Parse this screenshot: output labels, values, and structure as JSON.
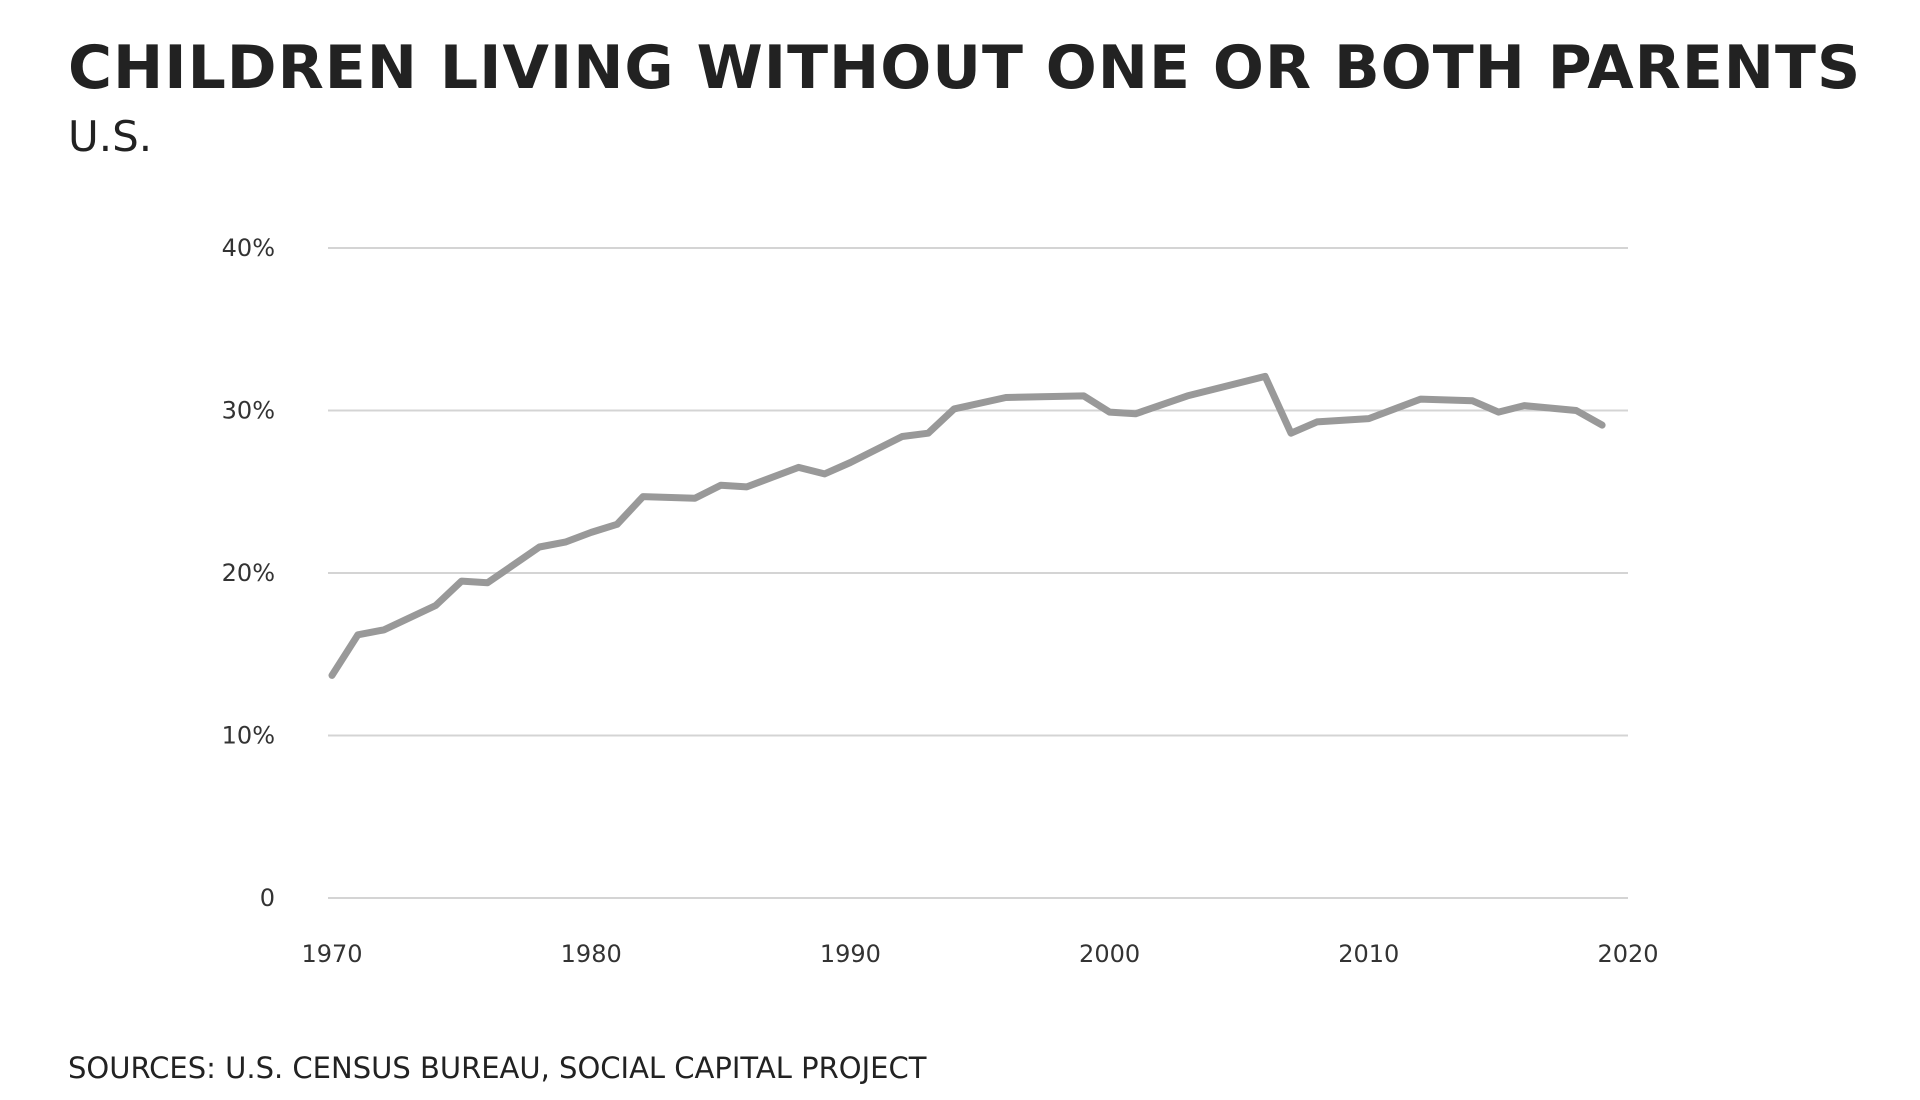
{
  "title": "Children living without one or both parents",
  "subtitle": "U.S.",
  "source": "Sources: U.S. Census Bureau, Social Capital Project",
  "chart_data": {
    "type": "line",
    "title": "Children living without one or both parents",
    "subtitle": "U.S.",
    "xlabel": "",
    "ylabel": "",
    "xlim": [
      1970,
      2020
    ],
    "ylim": [
      0,
      40
    ],
    "x_ticks": [
      1970,
      1980,
      1990,
      2000,
      2010,
      2020
    ],
    "y_ticks": [
      0,
      10,
      20,
      30,
      40
    ],
    "y_tick_labels": [
      "0",
      "10%",
      "20%",
      "30%",
      "40%"
    ],
    "grid": true,
    "legend": "none",
    "line_color": "#999999",
    "series": [
      {
        "x": [
          1970,
          1971,
          1972,
          1974,
          1975,
          1976,
          1978,
          1979,
          1980,
          1981,
          1982,
          1984,
          1985,
          1986,
          1987,
          1988,
          1989,
          1990,
          1992,
          1993,
          1994,
          1996,
          1999,
          2000,
          2001,
          2003,
          2006,
          2007,
          2008,
          2010,
          2012,
          2014,
          2015,
          2016,
          2018,
          2019
        ],
        "y": [
          13.7,
          16.2,
          16.5,
          18.0,
          19.5,
          19.4,
          21.6,
          21.9,
          22.5,
          23.0,
          24.7,
          24.6,
          25.4,
          25.3,
          25.9,
          26.5,
          26.1,
          26.8,
          28.4,
          28.6,
          30.1,
          30.8,
          30.9,
          29.9,
          29.8,
          30.9,
          32.1,
          28.6,
          29.3,
          29.5,
          30.7,
          30.6,
          29.9,
          30.3,
          30.0,
          29.1
        ]
      }
    ]
  }
}
